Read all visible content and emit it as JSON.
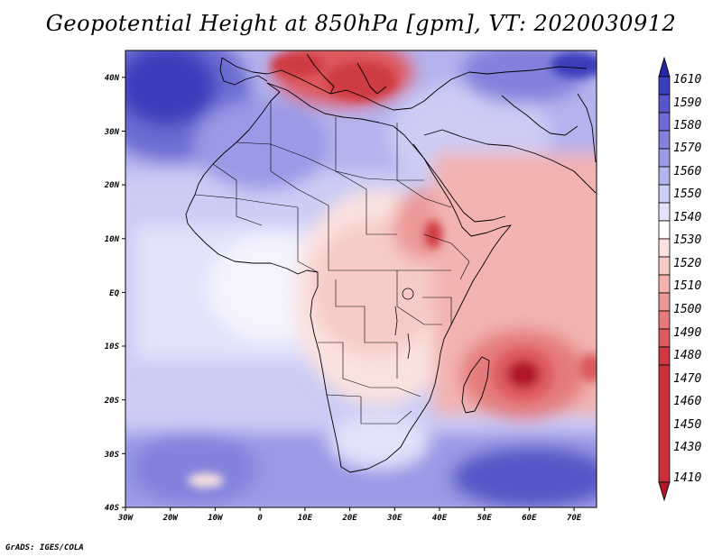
{
  "title": "Geopotential Height at 850hPa [gpm], VT: 2020030912",
  "credit": "GrADS: IGES/COLA",
  "colors": {
    "c1410": "#b2182b",
    "c1430": "#cf3a42",
    "c1450": "#dd5a5e",
    "c1460": "#e57a7c",
    "c1470": "#ec9898",
    "c1480": "#f2b3b1",
    "c1490": "#f6cbc7",
    "c1500": "#fae2de",
    "c1510": "#ffffff",
    "c1520": "#e2e2fb",
    "c1530": "#ccccf5",
    "c1540": "#b3b3ee",
    "c1550": "#9a9ae6",
    "c1560": "#8282dd",
    "c1570": "#6c6cd3",
    "c1580": "#5656c8",
    "c1590": "#3e3ebc",
    "c1610": "#2626a8"
  },
  "map": {
    "lon_range": [
      -30,
      75
    ],
    "lat_range": [
      -40,
      45
    ],
    "lon_ticks": [
      "30W",
      "20W",
      "10W",
      "0",
      "10E",
      "20E",
      "30E",
      "40E",
      "50E",
      "60E",
      "70E"
    ],
    "lat_ticks": [
      "40N",
      "30N",
      "20N",
      "10N",
      "EQ",
      "10S",
      "20S",
      "30S",
      "40S"
    ]
  },
  "colorbar": {
    "labels": [
      "1610",
      "1590",
      "1580",
      "1570",
      "1560",
      "1550",
      "1540",
      "1530",
      "1520",
      "1510",
      "1500",
      "1490",
      "1480",
      "1470",
      "1460",
      "1450",
      "1430",
      "1410"
    ],
    "colors": [
      "#2626a8",
      "#3e3ebc",
      "#5656c8",
      "#6c6cd3",
      "#8282dd",
      "#9a9ae6",
      "#b3b3ee",
      "#ccccf5",
      "#e2e2fb",
      "#ffffff",
      "#fae2de",
      "#f6cbc7",
      "#f2b3b1",
      "#ec9898",
      "#e57a7c",
      "#dd5a5e",
      "#cf3a42",
      "#b2182b"
    ]
  }
}
